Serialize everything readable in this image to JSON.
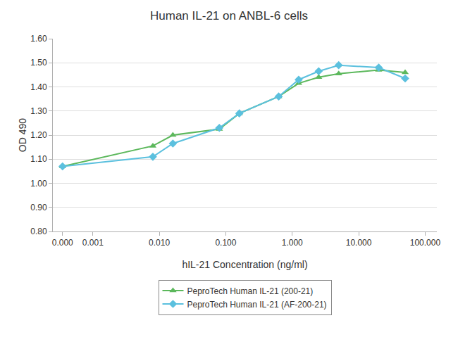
{
  "chart_data": {
    "type": "line",
    "title": "Human IL-21 on ANBL-6 cells",
    "x_label": "hIL-21 Concentration (ng/ml)",
    "y_label": "OD 490",
    "log": "x",
    "x": [
      0.00035,
      0.008,
      0.016,
      0.08,
      0.16,
      0.625,
      1.25,
      2.5,
      5.0,
      20.0,
      50.0
    ],
    "series": [
      {
        "name": "PeproTech Human IL-21 (200-21)",
        "color": "#5cb85c",
        "marker": "triangle",
        "values": [
          1.07,
          1.155,
          1.2,
          1.225,
          1.29,
          1.36,
          1.415,
          1.44,
          1.455,
          1.47,
          1.46
        ]
      },
      {
        "name": "PeproTech Human IL-21 (AF-200-21)",
        "color": "#5bc0de",
        "marker": "diamond",
        "values": [
          1.07,
          1.11,
          1.165,
          1.23,
          1.29,
          1.36,
          1.43,
          1.465,
          1.49,
          1.48,
          1.435
        ]
      }
    ],
    "xlim": [
      0.00025,
      150
    ],
    "xticks": [
      {
        "value": 0.00035,
        "label": "0.000"
      },
      {
        "value": 0.001,
        "label": "0.001"
      },
      {
        "value": 0.01,
        "label": "0.010"
      },
      {
        "value": 0.1,
        "label": "0.100"
      },
      {
        "value": 1.0,
        "label": "1.000"
      },
      {
        "value": 10.0,
        "label": "10.000"
      },
      {
        "value": 100.0,
        "label": "100.000"
      }
    ],
    "ylim": [
      0.8,
      1.6
    ],
    "yticks": [
      {
        "value": 0.8,
        "label": "0.80"
      },
      {
        "value": 0.9,
        "label": "0.90"
      },
      {
        "value": 1.0,
        "label": "1.00"
      },
      {
        "value": 1.1,
        "label": "1.10"
      },
      {
        "value": 1.2,
        "label": "1.20"
      },
      {
        "value": 1.3,
        "label": "1.30"
      },
      {
        "value": 1.4,
        "label": "1.40"
      },
      {
        "value": 1.5,
        "label": "1.50"
      },
      {
        "value": 1.6,
        "label": "1.60"
      }
    ],
    "grid": "y",
    "legend": "bottom"
  }
}
